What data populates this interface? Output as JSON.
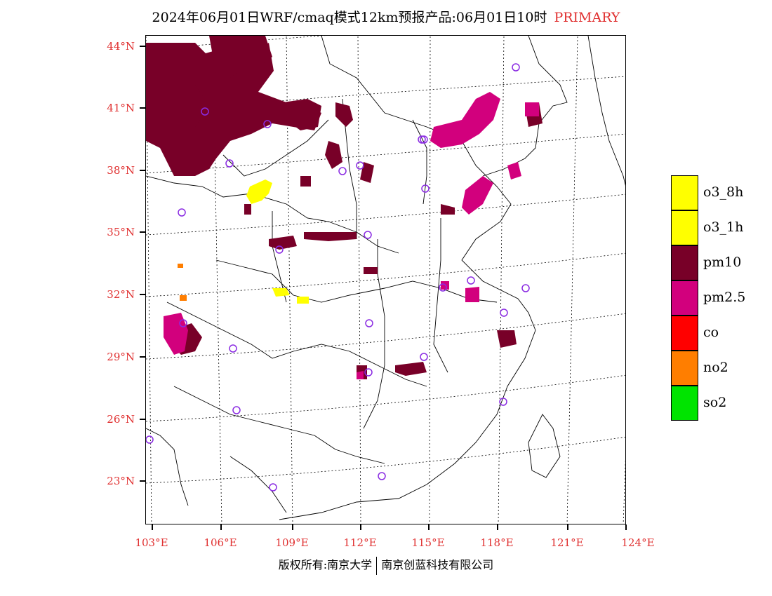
{
  "title": {
    "main": "2024年06月01日WRF/cmaq模式12km预报产品:06月01日10时",
    "tag": "PRIMARY"
  },
  "axes": {
    "lat_labels": [
      "44°N",
      "41°N",
      "38°N",
      "35°N",
      "32°N",
      "29°N",
      "26°N",
      "23°N"
    ],
    "lon_labels": [
      "103°E",
      "106°E",
      "109°E",
      "112°E",
      "115°E",
      "118°E",
      "121°E",
      "124°E"
    ]
  },
  "legend": {
    "items": [
      {
        "label": "o3_8h",
        "color": "#ffff00"
      },
      {
        "label": "o3_1h",
        "color": "#ffff00"
      },
      {
        "label": "pm10",
        "color": "#780028"
      },
      {
        "label": "pm2.5",
        "color": "#d2007d"
      },
      {
        "label": "co",
        "color": "#ff0000"
      },
      {
        "label": "no2",
        "color": "#ff7e00"
      },
      {
        "label": "so2",
        "color": "#00e400"
      }
    ]
  },
  "footer": {
    "left": "版权所有:南京大学",
    "right": "南京创蓝科技有限公司"
  },
  "colors": {
    "label_red": "#e03030",
    "station_circle": "#8a2be2"
  }
}
